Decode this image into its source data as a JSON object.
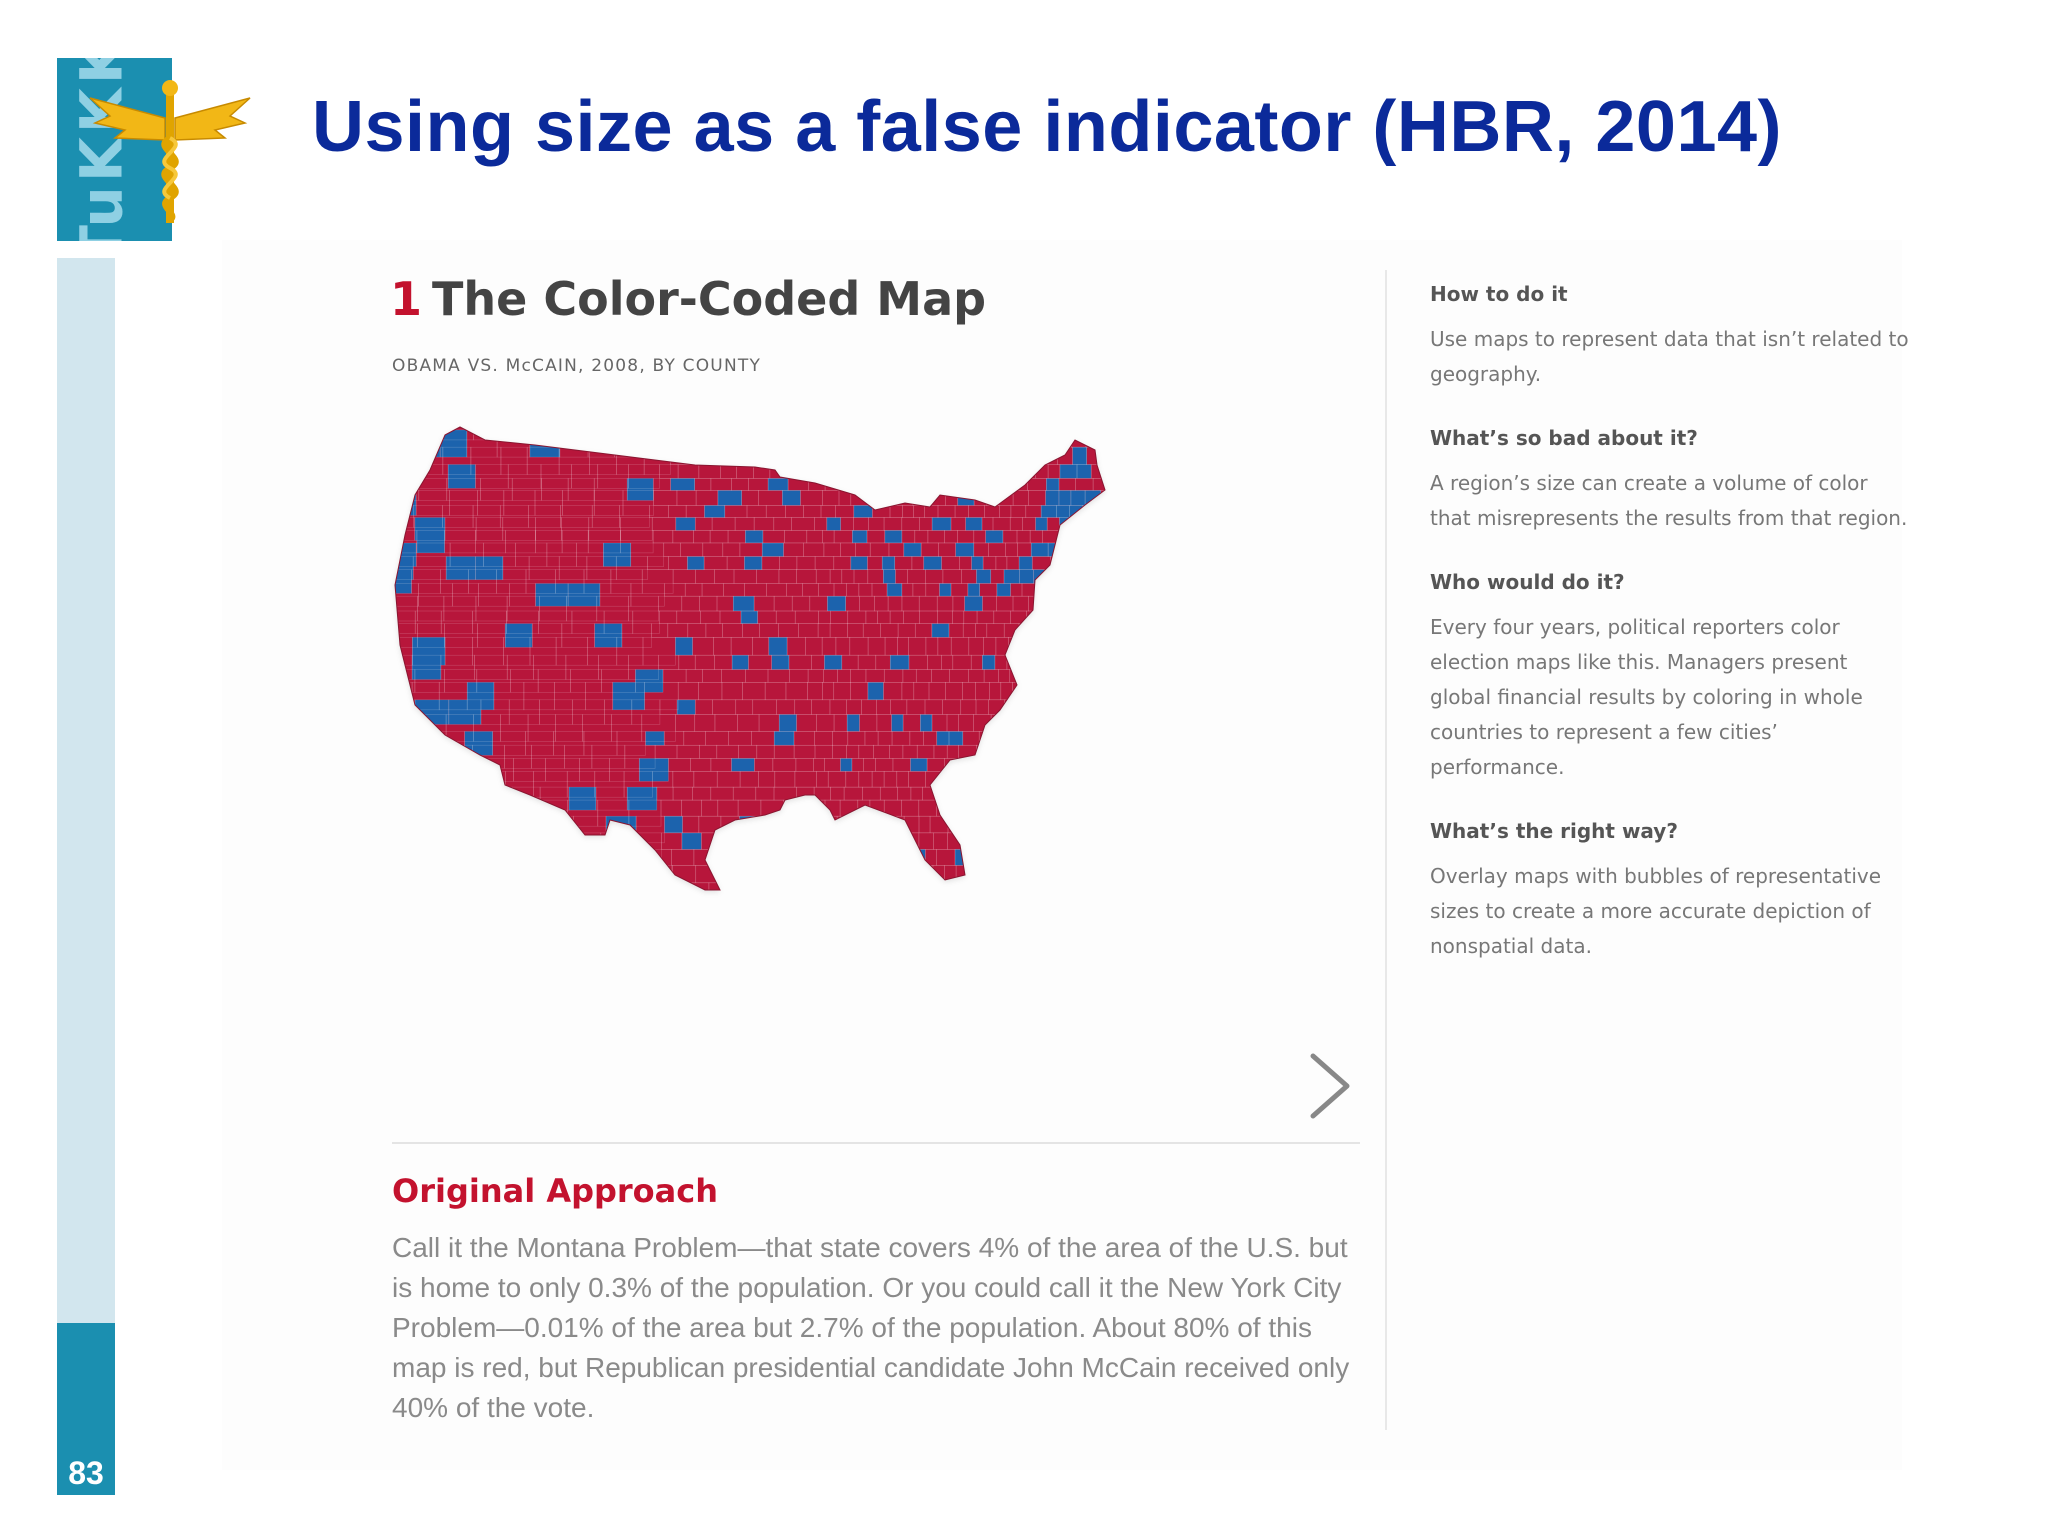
{
  "slide": {
    "title": "Using size as a false indicator (HBR, 2014)",
    "page_number": "83",
    "logo_text": "TuKKK"
  },
  "figure": {
    "number": "1",
    "heading": "The Color-Coded Map",
    "subtitle": "OBAMA VS. McCAIN, 2008, BY COUNTY",
    "map_colors": {
      "republican": "#b7143a",
      "democrat": "#1f64ad"
    }
  },
  "approach": {
    "heading": "Original Approach",
    "body": "Call it the Montana Problem—that state covers 4% of the area of the U.S. but is home to only 0.3% of the population. Or you could call it the New York City Problem—0.01% of the area but 2.7% of the population. About 80% of this map is red, but Republican presidential candidate John McCain received only 40% of the vote."
  },
  "sidebar": {
    "how_heading": "How to do it",
    "how_text": "Use maps to represent data that isn’t related to geography.",
    "bad_heading": "What’s so bad about it?",
    "bad_text": "A region’s size can create a volume of color that misrepresents the results from that region.",
    "who_heading": "Who would do it?",
    "who_text": "Every four years, political reporters color election maps like this. Managers present global financial results by coloring in whole countries to represent a few cities’ performance.",
    "right_heading": "What’s the right way?",
    "right_text": "Overlay maps with bubbles of representative sizes to create a more accurate depiction of nonspatial data."
  },
  "nav": {
    "next_icon": "chevron-right-icon"
  }
}
